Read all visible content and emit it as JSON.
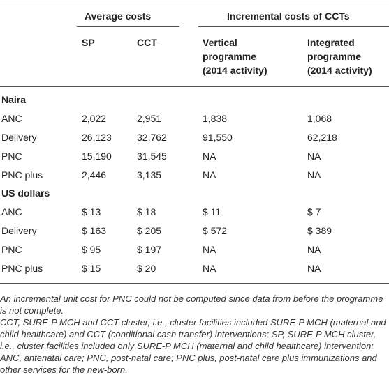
{
  "header": {
    "group1": "Average costs",
    "group2": "Incremental costs of CCTs",
    "col_sp": "SP",
    "col_cct": "CCT",
    "col_vertical": [
      "Vertical",
      "programme",
      "(2014 activity)"
    ],
    "col_integrated": [
      "Integrated",
      "programme",
      "(2014 activity)"
    ]
  },
  "sections": [
    {
      "title": "Naira",
      "rows": [
        {
          "label": "ANC",
          "sp": "2,022",
          "cct": "2,951",
          "vertical": "1,838",
          "integrated": "1,068"
        },
        {
          "label": "Delivery",
          "sp": "26,123",
          "cct": "32,762",
          "vertical": "91,550",
          "integrated": "62,218"
        },
        {
          "label": "PNC",
          "sp": "15,190",
          "cct": "31,545",
          "vertical": "NA",
          "integrated": "NA"
        },
        {
          "label": "PNC plus",
          "sp": "2,446",
          "cct": "3,135",
          "vertical": "NA",
          "integrated": "NA"
        }
      ]
    },
    {
      "title": "US dollars",
      "rows": [
        {
          "label": "ANC",
          "sp": "$ 13",
          "cct": "$ 18",
          "vertical": "$ 11",
          "integrated": "$ 7"
        },
        {
          "label": "Delivery",
          "sp": "$ 163",
          "cct": "$ 205",
          "vertical": "$ 572",
          "integrated": "$ 389"
        },
        {
          "label": "PNC",
          "sp": "$ 95",
          "cct": "$ 197",
          "vertical": "NA",
          "integrated": "NA"
        },
        {
          "label": "PNC plus",
          "sp": "$ 15",
          "cct": "$ 20",
          "vertical": "NA",
          "integrated": "NA"
        }
      ]
    }
  ],
  "notes": [
    "An incremental unit cost for PNC could not be computed since data from before the programme is not complete.",
    "CCT, SURE-P MCH and CCT cluster, i.e., cluster facilities included SURE-P MCH (maternal and child healthcare) and CCT (conditional cash transfer) interventions; SP, SURE-P MCH cluster, i.e., cluster facilities included only SURE-P MCH (maternal and child healthcare) intervention; ANC, antenatal care; PNC, post-natal care; PNC plus, post-natal care plus immunizations and other services for the new-born."
  ]
}
